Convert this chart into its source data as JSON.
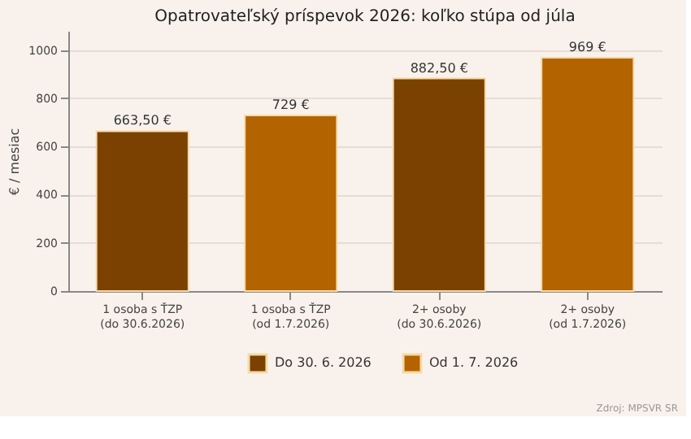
{
  "chart_data": {
    "type": "bar",
    "title": "Opatrovateľský príspevok 2026: koľko stúpa od júla",
    "ylabel": "€ / mesiac",
    "categories": [
      "1 osoba s ŤZP\n(do 30.6.2026)",
      "1 osoba s ŤZP\n(od 1.7.2026)",
      "2+ osoby\n(do 30.6.2026)",
      "2+ osoby\n(od 1.7.2026)"
    ],
    "series": [
      {
        "name": "Do 30. 6. 2026",
        "color": "#7a4100",
        "values": [
          663.5,
          null,
          882.5,
          null
        ],
        "value_labels": [
          "663,50 €",
          null,
          "882,50 €",
          null
        ]
      },
      {
        "name": "Od 1. 7. 2026",
        "color": "#b36400",
        "values": [
          null,
          729,
          null,
          969
        ],
        "value_labels": [
          null,
          "729 €",
          null,
          "969 €"
        ]
      }
    ],
    "ylim": [
      0,
      1080
    ],
    "yticks": [
      0,
      200,
      400,
      600,
      800,
      1000
    ],
    "grid": "y",
    "legend": "bottom",
    "annotations": [
      "Zdroj: MPSVR SR"
    ]
  }
}
